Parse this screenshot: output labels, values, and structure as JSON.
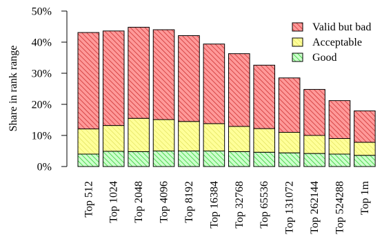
{
  "chart_data": {
    "type": "bar",
    "stacked": true,
    "title": "",
    "xlabel": "",
    "ylabel": "Share in rank range",
    "ylim": [
      0,
      50
    ],
    "yticks": [
      0,
      10,
      20,
      30,
      40,
      50
    ],
    "ytick_labels": [
      "0%",
      "10%",
      "20%",
      "30%",
      "40%",
      "50%"
    ],
    "grid": false,
    "legend_position": "top-right",
    "categories": [
      "Top 512",
      "Top 1024",
      "Top 2048",
      "Top 4096",
      "Top 8192",
      "Top 16384",
      "Top 32768",
      "Top 65536",
      "Top 131072",
      "Top 262144",
      "Top 524288",
      "Top 1m"
    ],
    "series": [
      {
        "name": "Good",
        "color": "#33cc33",
        "fill": "#ccffcc",
        "values": [
          4.0,
          4.9,
          4.8,
          5.0,
          5.0,
          5.0,
          4.8,
          4.6,
          4.4,
          4.2,
          4.0,
          3.6
        ]
      },
      {
        "name": "Acceptable",
        "color": "#999900",
        "fill": "#ffff99",
        "values": [
          8.1,
          8.3,
          10.7,
          10.1,
          9.5,
          8.8,
          8.1,
          7.6,
          6.6,
          5.8,
          5.0,
          4.2
        ]
      },
      {
        "name": "Valid but bad",
        "color": "#cc3333",
        "fill": "#ff9999",
        "values": [
          31.0,
          30.4,
          29.3,
          28.9,
          27.6,
          25.6,
          23.4,
          20.4,
          17.5,
          14.8,
          12.2,
          10.1
        ]
      }
    ],
    "legend_order": [
      "Valid but bad",
      "Acceptable",
      "Good"
    ]
  }
}
